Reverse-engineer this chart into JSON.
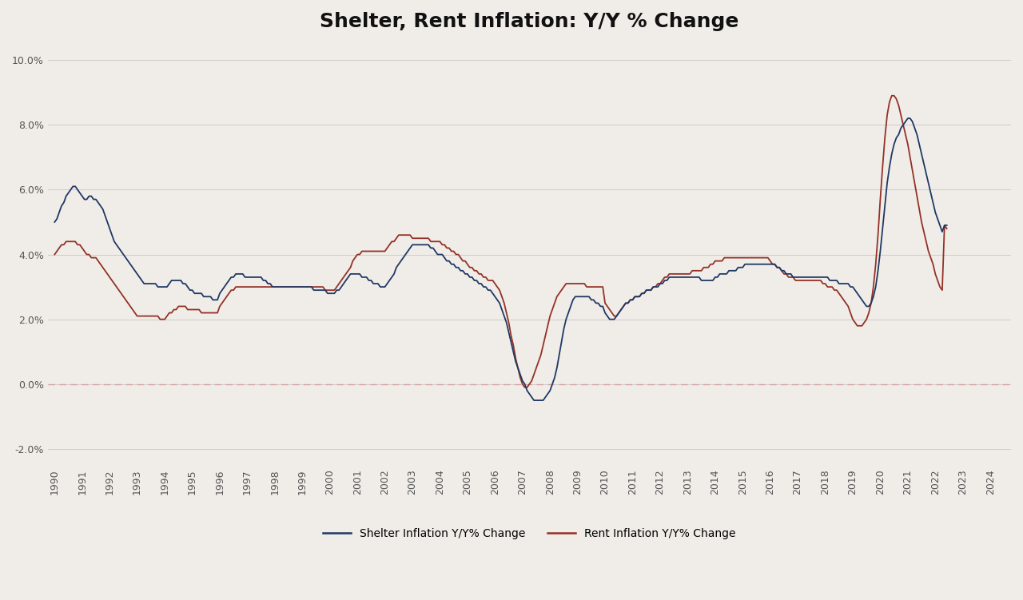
{
  "title": "Shelter, Rent Inflation: Y/Y % Change",
  "title_fontsize": 18,
  "shelter_color": "#1f3864",
  "rent_color": "#943126",
  "background_color": "#f0ede8",
  "grid_color": "#cccccc",
  "zero_line_color": "#d4a0a0",
  "ylim": [
    -0.025,
    0.105
  ],
  "yticks": [
    -0.02,
    0.0,
    0.02,
    0.04,
    0.06,
    0.08,
    0.1
  ],
  "legend_shelter": "Shelter Inflation Y/Y% Change",
  "legend_rent": "Rent Inflation Y/Y% Change",
  "shelter_data": [
    0.05,
    0.051,
    0.053,
    0.055,
    0.056,
    0.058,
    0.059,
    0.06,
    0.061,
    0.061,
    0.06,
    0.059,
    0.058,
    0.057,
    0.057,
    0.058,
    0.058,
    0.057,
    0.057,
    0.056,
    0.055,
    0.054,
    0.052,
    0.05,
    0.048,
    0.046,
    0.044,
    0.043,
    0.042,
    0.041,
    0.04,
    0.039,
    0.038,
    0.037,
    0.036,
    0.035,
    0.034,
    0.033,
    0.032,
    0.031,
    0.031,
    0.031,
    0.031,
    0.031,
    0.031,
    0.03,
    0.03,
    0.03,
    0.03,
    0.03,
    0.031,
    0.032,
    0.032,
    0.032,
    0.032,
    0.032,
    0.031,
    0.031,
    0.03,
    0.029,
    0.029,
    0.028,
    0.028,
    0.028,
    0.028,
    0.027,
    0.027,
    0.027,
    0.027,
    0.026,
    0.026,
    0.026,
    0.028,
    0.029,
    0.03,
    0.031,
    0.032,
    0.033,
    0.033,
    0.034,
    0.034,
    0.034,
    0.034,
    0.033,
    0.033,
    0.033,
    0.033,
    0.033,
    0.033,
    0.033,
    0.033,
    0.032,
    0.032,
    0.031,
    0.031,
    0.03,
    0.03,
    0.03,
    0.03,
    0.03,
    0.03,
    0.03,
    0.03,
    0.03,
    0.03,
    0.03,
    0.03,
    0.03,
    0.03,
    0.03,
    0.03,
    0.03,
    0.03,
    0.029,
    0.029,
    0.029,
    0.029,
    0.029,
    0.029,
    0.028,
    0.028,
    0.028,
    0.028,
    0.029,
    0.029,
    0.03,
    0.031,
    0.032,
    0.033,
    0.034,
    0.034,
    0.034,
    0.034,
    0.034,
    0.033,
    0.033,
    0.033,
    0.032,
    0.032,
    0.031,
    0.031,
    0.031,
    0.03,
    0.03,
    0.03,
    0.031,
    0.032,
    0.033,
    0.034,
    0.036,
    0.037,
    0.038,
    0.039,
    0.04,
    0.041,
    0.042,
    0.043,
    0.043,
    0.043,
    0.043,
    0.043,
    0.043,
    0.043,
    0.043,
    0.042,
    0.042,
    0.041,
    0.04,
    0.04,
    0.04,
    0.039,
    0.038,
    0.038,
    0.037,
    0.037,
    0.036,
    0.036,
    0.035,
    0.035,
    0.034,
    0.034,
    0.033,
    0.033,
    0.032,
    0.032,
    0.031,
    0.031,
    0.03,
    0.03,
    0.029,
    0.029,
    0.028,
    0.027,
    0.026,
    0.025,
    0.023,
    0.021,
    0.019,
    0.016,
    0.013,
    0.01,
    0.007,
    0.005,
    0.003,
    0.001,
    0.0,
    -0.002,
    -0.003,
    -0.004,
    -0.005,
    -0.005,
    -0.005,
    -0.005,
    -0.005,
    -0.004,
    -0.003,
    -0.002,
    0.0,
    0.002,
    0.005,
    0.009,
    0.013,
    0.017,
    0.02,
    0.022,
    0.024,
    0.026,
    0.027,
    0.027,
    0.027,
    0.027,
    0.027,
    0.027,
    0.027,
    0.026,
    0.026,
    0.025,
    0.025,
    0.024,
    0.024,
    0.022,
    0.021,
    0.02,
    0.02,
    0.02,
    0.021,
    0.022,
    0.023,
    0.024,
    0.025,
    0.025,
    0.026,
    0.026,
    0.027,
    0.027,
    0.027,
    0.028,
    0.028,
    0.029,
    0.029,
    0.029,
    0.03,
    0.03,
    0.03,
    0.031,
    0.031,
    0.032,
    0.032,
    0.033,
    0.033,
    0.033,
    0.033,
    0.033,
    0.033,
    0.033,
    0.033,
    0.033,
    0.033,
    0.033,
    0.033,
    0.033,
    0.033,
    0.032,
    0.032,
    0.032,
    0.032,
    0.032,
    0.032,
    0.033,
    0.033,
    0.034,
    0.034,
    0.034,
    0.034,
    0.035,
    0.035,
    0.035,
    0.035,
    0.036,
    0.036,
    0.036,
    0.037,
    0.037,
    0.037,
    0.037,
    0.037,
    0.037,
    0.037,
    0.037,
    0.037,
    0.037,
    0.037,
    0.037,
    0.037,
    0.037,
    0.036,
    0.036,
    0.035,
    0.035,
    0.034,
    0.034,
    0.034,
    0.033,
    0.033,
    0.033,
    0.033,
    0.033,
    0.033,
    0.033,
    0.033,
    0.033,
    0.033,
    0.033,
    0.033,
    0.033,
    0.033,
    0.033,
    0.033,
    0.032,
    0.032,
    0.032,
    0.032,
    0.031,
    0.031,
    0.031,
    0.031,
    0.031,
    0.03,
    0.03,
    0.029,
    0.028,
    0.027,
    0.026,
    0.025,
    0.024,
    0.024,
    0.025,
    0.027,
    0.03,
    0.035,
    0.041,
    0.048,
    0.055,
    0.062,
    0.067,
    0.071,
    0.074,
    0.076,
    0.077,
    0.079,
    0.08,
    0.081,
    0.082,
    0.082,
    0.081,
    0.079,
    0.077,
    0.074,
    0.071,
    0.068,
    0.065,
    0.062,
    0.059,
    0.056,
    0.053,
    0.051,
    0.049,
    0.047,
    0.049,
    0.049
  ],
  "rent_data": [
    0.04,
    0.041,
    0.042,
    0.043,
    0.043,
    0.044,
    0.044,
    0.044,
    0.044,
    0.044,
    0.043,
    0.043,
    0.042,
    0.041,
    0.04,
    0.04,
    0.039,
    0.039,
    0.039,
    0.038,
    0.037,
    0.036,
    0.035,
    0.034,
    0.033,
    0.032,
    0.031,
    0.03,
    0.029,
    0.028,
    0.027,
    0.026,
    0.025,
    0.024,
    0.023,
    0.022,
    0.021,
    0.021,
    0.021,
    0.021,
    0.021,
    0.021,
    0.021,
    0.021,
    0.021,
    0.021,
    0.02,
    0.02,
    0.02,
    0.021,
    0.022,
    0.022,
    0.023,
    0.023,
    0.024,
    0.024,
    0.024,
    0.024,
    0.023,
    0.023,
    0.023,
    0.023,
    0.023,
    0.023,
    0.022,
    0.022,
    0.022,
    0.022,
    0.022,
    0.022,
    0.022,
    0.022,
    0.024,
    0.025,
    0.026,
    0.027,
    0.028,
    0.029,
    0.029,
    0.03,
    0.03,
    0.03,
    0.03,
    0.03,
    0.03,
    0.03,
    0.03,
    0.03,
    0.03,
    0.03,
    0.03,
    0.03,
    0.03,
    0.03,
    0.03,
    0.03,
    0.03,
    0.03,
    0.03,
    0.03,
    0.03,
    0.03,
    0.03,
    0.03,
    0.03,
    0.03,
    0.03,
    0.03,
    0.03,
    0.03,
    0.03,
    0.03,
    0.03,
    0.03,
    0.03,
    0.03,
    0.03,
    0.03,
    0.029,
    0.029,
    0.029,
    0.029,
    0.029,
    0.03,
    0.031,
    0.032,
    0.033,
    0.034,
    0.035,
    0.036,
    0.038,
    0.039,
    0.04,
    0.04,
    0.041,
    0.041,
    0.041,
    0.041,
    0.041,
    0.041,
    0.041,
    0.041,
    0.041,
    0.041,
    0.041,
    0.042,
    0.043,
    0.044,
    0.044,
    0.045,
    0.046,
    0.046,
    0.046,
    0.046,
    0.046,
    0.046,
    0.045,
    0.045,
    0.045,
    0.045,
    0.045,
    0.045,
    0.045,
    0.045,
    0.044,
    0.044,
    0.044,
    0.044,
    0.044,
    0.043,
    0.043,
    0.042,
    0.042,
    0.041,
    0.041,
    0.04,
    0.04,
    0.039,
    0.038,
    0.038,
    0.037,
    0.036,
    0.036,
    0.035,
    0.035,
    0.034,
    0.034,
    0.033,
    0.033,
    0.032,
    0.032,
    0.032,
    0.031,
    0.03,
    0.029,
    0.027,
    0.025,
    0.022,
    0.019,
    0.015,
    0.012,
    0.008,
    0.005,
    0.002,
    0.0,
    -0.001,
    -0.001,
    0.0,
    0.001,
    0.003,
    0.005,
    0.007,
    0.009,
    0.012,
    0.015,
    0.018,
    0.021,
    0.023,
    0.025,
    0.027,
    0.028,
    0.029,
    0.03,
    0.031,
    0.031,
    0.031,
    0.031,
    0.031,
    0.031,
    0.031,
    0.031,
    0.031,
    0.03,
    0.03,
    0.03,
    0.03,
    0.03,
    0.03,
    0.03,
    0.03,
    0.025,
    0.024,
    0.023,
    0.022,
    0.021,
    0.021,
    0.022,
    0.023,
    0.024,
    0.025,
    0.025,
    0.026,
    0.026,
    0.027,
    0.027,
    0.027,
    0.028,
    0.028,
    0.029,
    0.029,
    0.029,
    0.03,
    0.03,
    0.031,
    0.031,
    0.032,
    0.033,
    0.033,
    0.034,
    0.034,
    0.034,
    0.034,
    0.034,
    0.034,
    0.034,
    0.034,
    0.034,
    0.034,
    0.035,
    0.035,
    0.035,
    0.035,
    0.035,
    0.036,
    0.036,
    0.036,
    0.037,
    0.037,
    0.038,
    0.038,
    0.038,
    0.038,
    0.039,
    0.039,
    0.039,
    0.039,
    0.039,
    0.039,
    0.039,
    0.039,
    0.039,
    0.039,
    0.039,
    0.039,
    0.039,
    0.039,
    0.039,
    0.039,
    0.039,
    0.039,
    0.039,
    0.039,
    0.038,
    0.037,
    0.037,
    0.036,
    0.036,
    0.035,
    0.034,
    0.034,
    0.033,
    0.033,
    0.033,
    0.032,
    0.032,
    0.032,
    0.032,
    0.032,
    0.032,
    0.032,
    0.032,
    0.032,
    0.032,
    0.032,
    0.032,
    0.031,
    0.031,
    0.03,
    0.03,
    0.03,
    0.029,
    0.029,
    0.028,
    0.027,
    0.026,
    0.025,
    0.024,
    0.022,
    0.02,
    0.019,
    0.018,
    0.018,
    0.018,
    0.019,
    0.02,
    0.022,
    0.025,
    0.03,
    0.037,
    0.046,
    0.057,
    0.067,
    0.076,
    0.083,
    0.087,
    0.089,
    0.089,
    0.088,
    0.086,
    0.083,
    0.08,
    0.077,
    0.074,
    0.07,
    0.066,
    0.062,
    0.058,
    0.054,
    0.05,
    0.047,
    0.044,
    0.041,
    0.039,
    0.037,
    0.034,
    0.032,
    0.03,
    0.029,
    0.049,
    0.048
  ],
  "start_year": 1990,
  "start_month": 1,
  "xtick_years": [
    1990,
    1991,
    1992,
    1993,
    1994,
    1995,
    1996,
    1997,
    1998,
    1999,
    2000,
    2001,
    2002,
    2003,
    2004,
    2005,
    2006,
    2007,
    2008,
    2009,
    2010,
    2011,
    2012,
    2013,
    2014,
    2015,
    2016,
    2017,
    2018,
    2019,
    2020,
    2021,
    2022,
    2023,
    2024
  ]
}
